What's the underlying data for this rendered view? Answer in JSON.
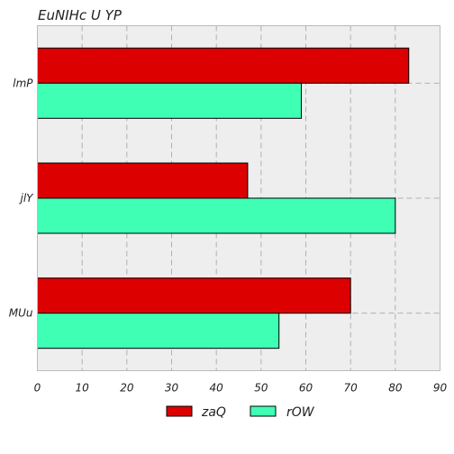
{
  "chart_data": {
    "type": "bar",
    "orientation": "horizontal",
    "title": "EuNIHc  U YP",
    "xlabel": "",
    "ylabel": "",
    "categories": [
      "lmP",
      "jlY",
      "MUu"
    ],
    "series": [
      {
        "name": "zaQ",
        "values": [
          83,
          47,
          70
        ],
        "color": "#dd0000"
      },
      {
        "name": "rOW",
        "values": [
          59,
          80,
          54
        ],
        "color": "#3fffb5"
      }
    ],
    "xlim": [
      0,
      90
    ],
    "xticks": [
      0,
      10,
      20,
      30,
      40,
      50,
      60,
      70,
      80,
      90
    ],
    "grid": true,
    "grid_style": "dashed",
    "legend_position": "bottom-center",
    "plot_background": "#eeeeee"
  }
}
